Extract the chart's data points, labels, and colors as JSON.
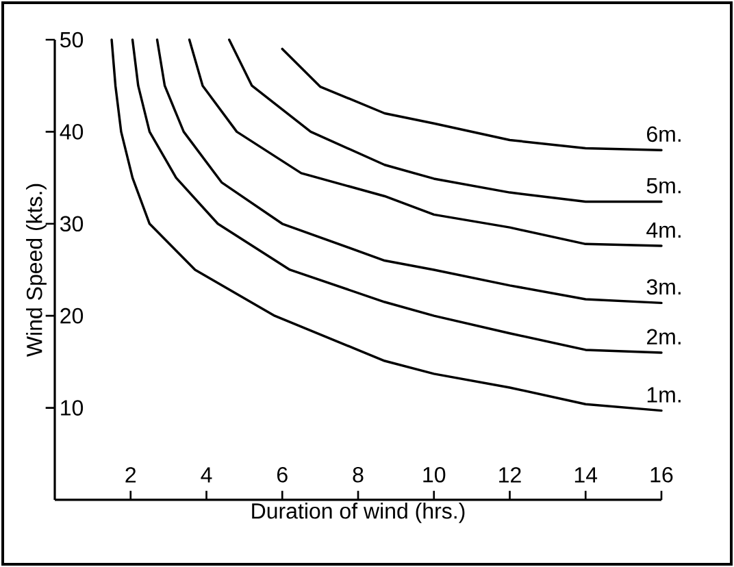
{
  "chart_data": {
    "type": "line",
    "xlabel": "Duration of wind (hrs.)",
    "ylabel": "Wind Speed (kts.)",
    "xlim": [
      0,
      16
    ],
    "ylim": [
      0,
      50
    ],
    "xticks": [
      2,
      4,
      6,
      8,
      10,
      12,
      14,
      16
    ],
    "yticks": [
      10,
      20,
      30,
      40,
      50
    ],
    "marker": "none",
    "line_style": "solid",
    "series": [
      {
        "name": "1m.",
        "color": "#000000",
        "x": [
          1.5,
          1.6,
          1.75,
          2.05,
          2.5,
          3.7,
          5.8,
          8.7,
          10,
          12,
          14,
          16
        ],
        "values": [
          50,
          45,
          40,
          35,
          30,
          25,
          20,
          15.1,
          13.7,
          12.2,
          10.4,
          9.7
        ]
      },
      {
        "name": "2m.",
        "color": "#000000",
        "x": [
          2.05,
          2.2,
          2.5,
          3.2,
          4.3,
          6.2,
          8.7,
          10,
          12,
          14,
          16
        ],
        "values": [
          50,
          45,
          40,
          35,
          30,
          25,
          21.5,
          20,
          18.1,
          16.3,
          16.0
        ]
      },
      {
        "name": "3m.",
        "color": "#000000",
        "x": [
          2.7,
          2.9,
          3.4,
          4.4,
          6.0,
          8.7,
          10,
          12,
          14,
          16
        ],
        "values": [
          50,
          45,
          40,
          34.5,
          30,
          26,
          25,
          23.3,
          21.8,
          21.4
        ]
      },
      {
        "name": "4m.",
        "color": "#000000",
        "x": [
          3.55,
          3.9,
          4.8,
          6.5,
          8.7,
          10,
          12,
          14,
          16
        ],
        "values": [
          50,
          45,
          40,
          35.5,
          33,
          31,
          29.6,
          27.8,
          27.6
        ]
      },
      {
        "name": "5m.",
        "color": "#000000",
        "x": [
          4.6,
          5.2,
          6.75,
          8.7,
          10,
          12,
          14,
          16
        ],
        "values": [
          50,
          45,
          40,
          36.4,
          34.9,
          33.4,
          32.4,
          32.4
        ]
      },
      {
        "name": "6m.",
        "color": "#000000",
        "x": [
          6.0,
          7.0,
          8.7,
          10,
          12,
          14,
          16
        ],
        "values": [
          49,
          44.9,
          42,
          40.9,
          39.1,
          38.2,
          38.0
        ]
      }
    ]
  }
}
